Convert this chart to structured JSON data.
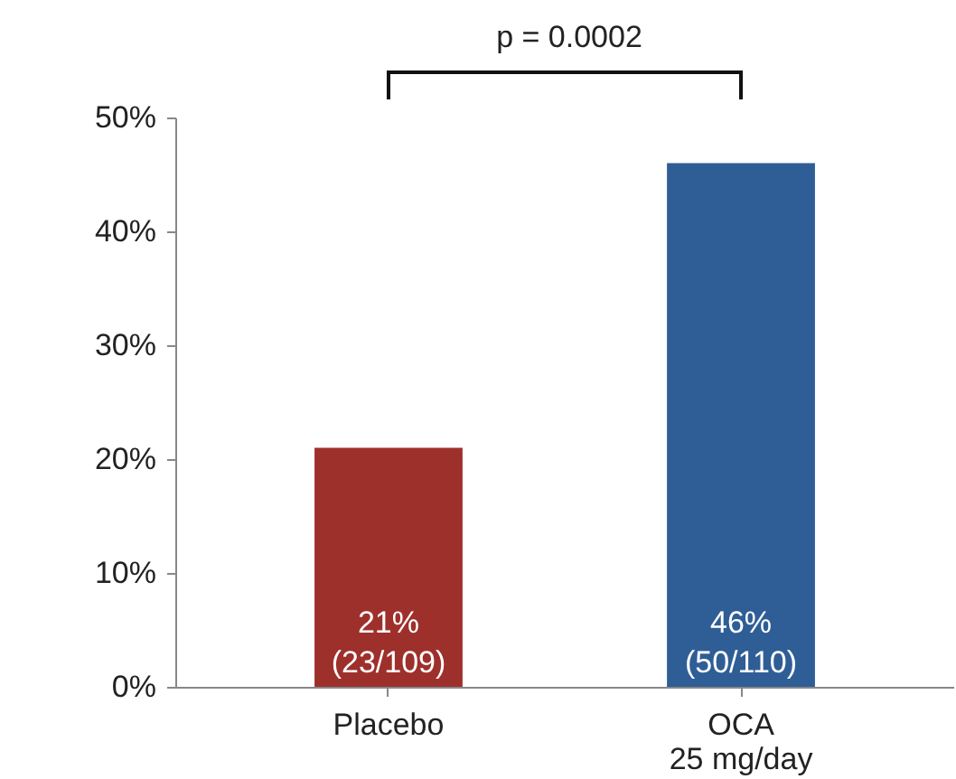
{
  "chart_data": {
    "type": "bar",
    "categories": [
      "Placebo",
      "OCA\n25 mg/day"
    ],
    "values": [
      21,
      46
    ],
    "colors": [
      "#9e302c",
      "#2f5e96"
    ],
    "value_labels": [
      "21%\n(23/109)",
      "46%\n(50/110)"
    ],
    "ylim": [
      0,
      50
    ],
    "yticks": [
      {
        "value": 0,
        "label": "0%"
      },
      {
        "value": 10,
        "label": "10%"
      },
      {
        "value": 20,
        "label": "20%"
      },
      {
        "value": 30,
        "label": "30%"
      },
      {
        "value": 40,
        "label": "40%"
      },
      {
        "value": 50,
        "label": "50%"
      }
    ],
    "annotations": [
      "p = 0.0002"
    ],
    "grid": false
  }
}
